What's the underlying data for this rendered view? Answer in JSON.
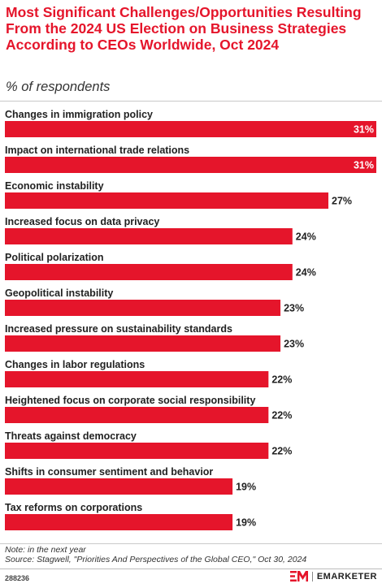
{
  "title": "Most Significant Challenges/Opportunities Resulting From the 2024 US Election on Business Strategies According to CEOs Worldwide, Oct 2024",
  "subtitle": "% of respondents",
  "chart_data": {
    "type": "bar",
    "orientation": "horizontal",
    "categories": [
      "Changes in immigration policy",
      "Impact on international trade relations",
      "Economic instability",
      "Increased focus on data privacy",
      "Political polarization",
      "Geopolitical instability",
      "Increased pressure on sustainability standards",
      "Changes in labor regulations",
      "Heightened focus on corporate social responsibility",
      "Threats against democracy",
      "Shifts in consumer sentiment and behavior",
      "Tax reforms on corporations"
    ],
    "values": [
      31,
      31,
      27,
      24,
      24,
      23,
      23,
      22,
      22,
      22,
      19,
      19
    ],
    "value_labels": [
      "31%",
      "31%",
      "27%",
      "24%",
      "24%",
      "23%",
      "23%",
      "22%",
      "22%",
      "22%",
      "19%",
      "19%"
    ],
    "xlim": [
      0,
      31
    ],
    "bar_color": "#e5152b",
    "label_color": "#222222",
    "grid": false
  },
  "note": "Note: in the next year",
  "source": "Source: Stagwell, \"Priorities And Perspectives of the Global CEO,\" Oct 30, 2024",
  "chart_id": "288236",
  "brand": {
    "name": "EMARKETER",
    "color": "#e5152b"
  }
}
